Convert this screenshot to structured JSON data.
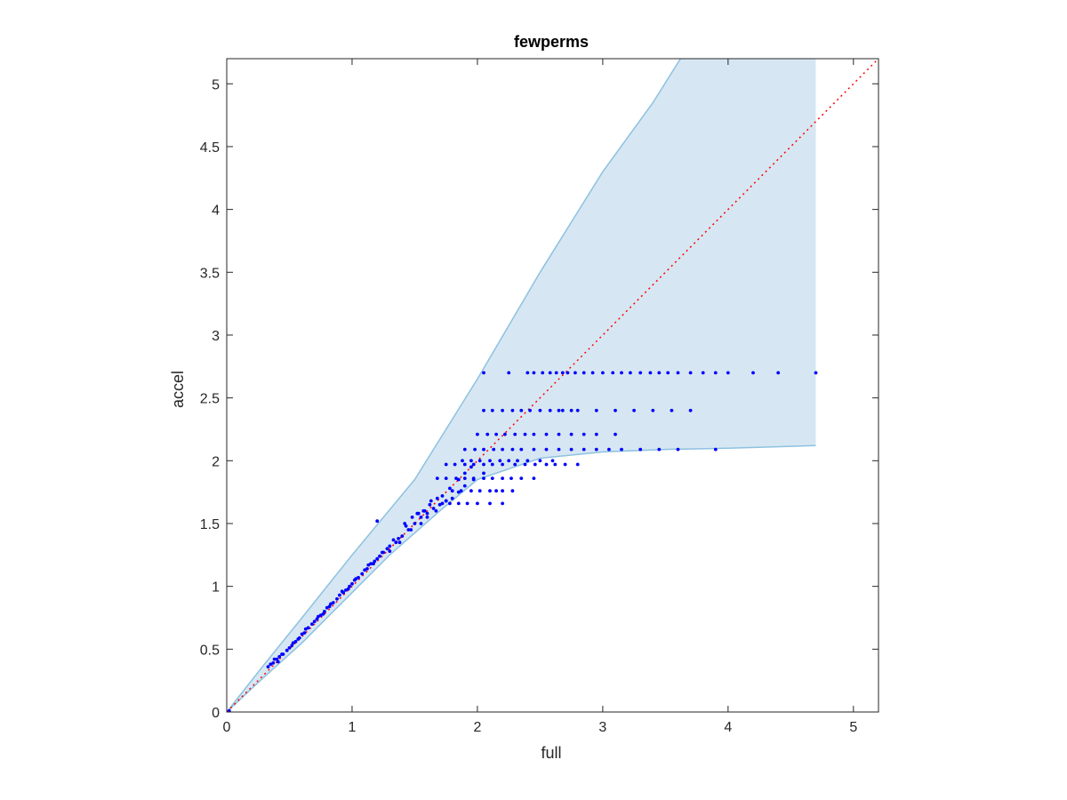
{
  "chart_data": {
    "type": "scatter",
    "title": "fewperms",
    "xlabel": "full",
    "ylabel": "accel",
    "xlim": [
      0,
      5.2
    ],
    "ylim": [
      0,
      5.2
    ],
    "xticks": [
      0,
      1,
      2,
      3,
      4,
      5
    ],
    "yticks": [
      0,
      0.5,
      1,
      1.5,
      2,
      2.5,
      3,
      3.5,
      4,
      4.5,
      5
    ],
    "xtick_labels": [
      "0",
      "1",
      "2",
      "3",
      "4",
      "5"
    ],
    "ytick_labels": [
      "0",
      "0.5",
      "1",
      "1.5",
      "2",
      "2.5",
      "3",
      "3.5",
      "4",
      "4.5",
      "5"
    ],
    "grid": false,
    "colors": {
      "points": "#0000ff",
      "band_fill": "#d6e7f3",
      "band_edge": "#8ec1e0",
      "reference_line": "#ff0000",
      "axes": "#262626"
    },
    "reference_line": {
      "x": [
        0,
        5.2
      ],
      "y": [
        0,
        5.2
      ],
      "style": "dotted"
    },
    "band": {
      "upper": [
        [
          0,
          0
        ],
        [
          0.3,
          0.38
        ],
        [
          0.6,
          0.75
        ],
        [
          1.0,
          1.25
        ],
        [
          1.5,
          1.85
        ],
        [
          2.0,
          2.65
        ],
        [
          2.5,
          3.5
        ],
        [
          3.0,
          4.3
        ],
        [
          3.4,
          4.85
        ],
        [
          3.62,
          5.2
        ],
        [
          4.7,
          5.2
        ]
      ],
      "lower": [
        [
          0,
          0
        ],
        [
          0.3,
          0.28
        ],
        [
          0.6,
          0.55
        ],
        [
          1.0,
          0.95
        ],
        [
          1.3,
          1.25
        ],
        [
          1.7,
          1.6
        ],
        [
          2.0,
          1.85
        ],
        [
          2.5,
          2.02
        ],
        [
          3.0,
          2.07
        ],
        [
          3.5,
          2.09
        ],
        [
          4.0,
          2.1
        ],
        [
          4.7,
          2.12
        ]
      ]
    },
    "points": {
      "x": [
        0.02,
        0.33,
        0.35,
        0.37,
        0.4,
        0.42,
        0.45,
        0.48,
        0.5,
        0.52,
        0.55,
        0.58,
        0.6,
        0.62,
        0.65,
        0.68,
        0.7,
        0.72,
        0.75,
        0.78,
        0.8,
        0.82,
        0.85,
        0.88,
        0.9,
        0.93,
        0.95,
        0.98,
        1.0,
        1.02,
        1.05,
        1.08,
        1.1,
        1.12,
        1.15,
        1.18,
        1.2,
        1.22,
        1.25,
        1.28,
        1.3,
        1.35,
        1.4,
        1.45,
        1.5,
        1.55,
        1.6,
        1.65,
        1.7,
        1.75,
        0.38,
        0.44,
        0.53,
        0.63,
        0.73,
        0.83,
        0.92,
        1.03,
        1.13,
        1.24,
        1.33,
        1.43,
        1.53,
        1.63,
        0.41,
        0.57,
        0.77,
        0.97,
        1.17,
        1.37,
        1.57,
        1.42,
        1.48,
        1.52,
        1.58,
        1.62,
        1.68,
        1.72,
        1.78,
        1.85,
        1.9,
        1.95,
        1.3,
        1.38,
        1.47,
        1.55,
        1.6,
        1.67,
        1.75,
        1.8,
        1.85,
        1.9,
        1.97,
        2.05,
        1.2,
        1.72,
        1.78,
        1.85,
        1.92,
        2.0,
        2.1,
        2.2,
        1.8,
        1.87,
        1.95,
        2.02,
        2.1,
        2.15,
        2.2,
        2.28,
        1.68,
        1.75,
        1.83,
        1.9,
        1.97,
        2.05,
        2.12,
        2.2,
        2.27,
        2.35,
        2.45,
        1.75,
        1.82,
        1.9,
        1.97,
        2.05,
        2.12,
        2.2,
        2.3,
        2.38,
        2.46,
        2.55,
        2.62,
        2.7,
        2.8,
        1.9,
        1.98,
        2.05,
        2.13,
        2.2,
        2.28,
        2.35,
        2.45,
        2.55,
        2.65,
        2.75,
        2.85,
        2.95,
        3.05,
        3.15,
        3.3,
        3.45,
        3.6,
        3.9,
        2.0,
        2.08,
        2.15,
        2.22,
        2.3,
        2.38,
        2.45,
        2.55,
        2.65,
        2.75,
        2.85,
        2.95,
        3.1,
        2.05,
        2.12,
        2.2,
        2.28,
        2.35,
        2.42,
        2.5,
        2.58,
        2.65,
        2.75,
        1.88,
        1.95,
        2.02,
        2.1,
        2.18,
        2.25,
        2.32,
        2.4,
        2.5,
        2.6,
        2.05,
        2.25,
        2.4,
        2.45,
        2.52,
        2.58,
        2.63,
        2.68,
        2.72,
        2.78,
        2.85,
        2.92,
        3.0,
        3.08,
        3.15,
        3.22,
        3.3,
        3.38,
        3.45,
        3.52,
        3.6,
        3.7,
        3.8,
        3.9,
        4.0,
        4.2,
        4.4,
        4.7,
        2.68,
        2.8,
        2.95,
        3.1,
        3.25,
        3.4,
        3.55,
        3.7
      ],
      "y": [
        0.01,
        0.36,
        0.38,
        0.39,
        0.42,
        0.44,
        0.46,
        0.49,
        0.51,
        0.53,
        0.56,
        0.59,
        0.62,
        0.63,
        0.67,
        0.7,
        0.72,
        0.74,
        0.77,
        0.8,
        0.83,
        0.84,
        0.87,
        0.9,
        0.93,
        0.95,
        0.97,
        1.0,
        1.02,
        1.05,
        1.07,
        1.1,
        1.13,
        1.14,
        1.18,
        1.2,
        1.22,
        1.24,
        1.27,
        1.3,
        1.32,
        1.35,
        1.4,
        1.45,
        1.5,
        1.55,
        1.58,
        1.62,
        1.65,
        1.68,
        0.42,
        0.46,
        0.55,
        0.66,
        0.76,
        0.86,
        0.96,
        1.06,
        1.17,
        1.27,
        1.37,
        1.48,
        1.58,
        1.68,
        0.4,
        0.58,
        0.78,
        0.98,
        1.18,
        1.38,
        1.6,
        1.5,
        1.55,
        1.58,
        1.6,
        1.65,
        1.7,
        1.72,
        1.78,
        1.85,
        1.9,
        1.95,
        1.28,
        1.35,
        1.45,
        1.5,
        1.55,
        1.6,
        1.68,
        1.7,
        1.75,
        1.8,
        1.85,
        1.9,
        1.52,
        1.66,
        1.66,
        1.66,
        1.66,
        1.66,
        1.66,
        1.66,
        1.76,
        1.76,
        1.76,
        1.76,
        1.76,
        1.76,
        1.76,
        1.76,
        1.86,
        1.86,
        1.86,
        1.86,
        1.86,
        1.86,
        1.86,
        1.86,
        1.86,
        1.86,
        1.86,
        1.97,
        1.97,
        1.97,
        1.97,
        1.97,
        1.97,
        1.97,
        1.97,
        1.97,
        1.97,
        1.97,
        1.97,
        1.97,
        1.97,
        2.09,
        2.09,
        2.09,
        2.09,
        2.09,
        2.09,
        2.09,
        2.09,
        2.09,
        2.09,
        2.09,
        2.09,
        2.09,
        2.09,
        2.09,
        2.09,
        2.09,
        2.09,
        2.09,
        2.21,
        2.21,
        2.21,
        2.21,
        2.21,
        2.21,
        2.21,
        2.21,
        2.21,
        2.21,
        2.21,
        2.21,
        2.21,
        2.4,
        2.4,
        2.4,
        2.4,
        2.4,
        2.4,
        2.4,
        2.4,
        2.4,
        2.4,
        2.0,
        2.0,
        2.0,
        2.0,
        2.0,
        2.0,
        2.0,
        2.0,
        2.0,
        2.0,
        2.7,
        2.7,
        2.7,
        2.7,
        2.7,
        2.7,
        2.7,
        2.7,
        2.7,
        2.7,
        2.7,
        2.7,
        2.7,
        2.7,
        2.7,
        2.7,
        2.7,
        2.7,
        2.7,
        2.7,
        2.7,
        2.7,
        2.7,
        2.7,
        2.7,
        2.7,
        2.7,
        2.7,
        2.4,
        2.4,
        2.4,
        2.4,
        2.4,
        2.4,
        2.4,
        2.4
      ]
    }
  }
}
